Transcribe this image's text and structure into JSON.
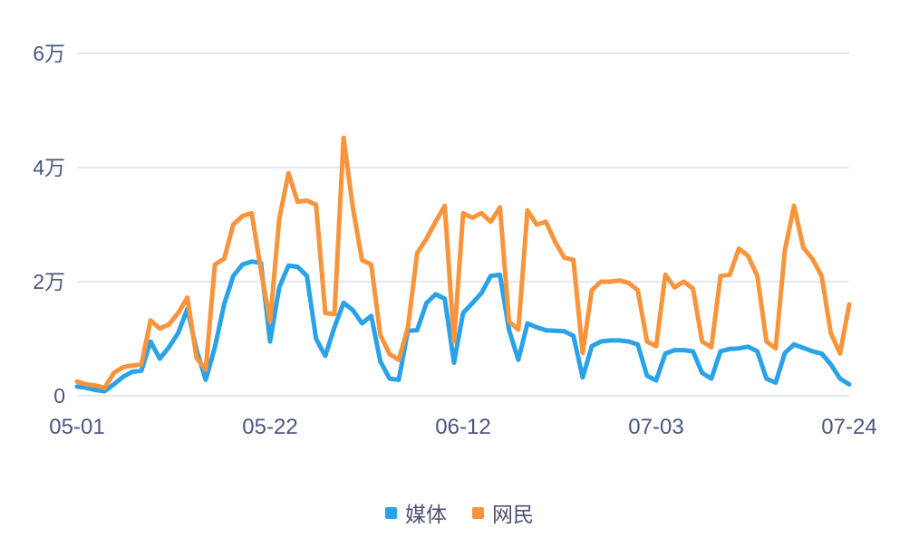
{
  "chart_data": {
    "type": "line",
    "title": "",
    "xlabel": "",
    "ylabel": "",
    "unit": "万",
    "ylim": [
      0,
      6
    ],
    "grid": true,
    "legend_position": "bottom",
    "y_ticks": [
      {
        "label": "0",
        "value": 0
      },
      {
        "label": "2万",
        "value": 2
      },
      {
        "label": "4万",
        "value": 4
      },
      {
        "label": "6万",
        "value": 6
      }
    ],
    "x_tick_labels": [
      "05-01",
      "05-22",
      "06-12",
      "07-03",
      "07-24"
    ],
    "x_tick_day_index": [
      0,
      21,
      42,
      63,
      84
    ],
    "x_range": [
      "05-01",
      "07-24"
    ],
    "colors": {
      "media_blue": "#2aa2e9",
      "netizen_orange": "#f8943b",
      "gridline": "#dce0ed",
      "axis_text": "#4a5680"
    },
    "series": [
      {
        "name": "媒体",
        "color": "#2aa2e9",
        "values": [
          0.16,
          0.14,
          0.1,
          0.08,
          0.2,
          0.33,
          0.42,
          0.44,
          0.95,
          0.65,
          0.85,
          1.1,
          1.52,
          0.8,
          0.28,
          0.85,
          1.6,
          2.1,
          2.3,
          2.35,
          2.33,
          0.95,
          1.9,
          2.28,
          2.26,
          2.1,
          1.0,
          0.7,
          1.2,
          1.63,
          1.5,
          1.27,
          1.4,
          0.6,
          0.3,
          0.28,
          1.14,
          1.15,
          1.62,
          1.78,
          1.7,
          0.58,
          1.45,
          1.62,
          1.8,
          2.1,
          2.12,
          1.15,
          0.63,
          1.27,
          1.2,
          1.15,
          1.14,
          1.13,
          1.05,
          0.32,
          0.87,
          0.95,
          0.97,
          0.97,
          0.95,
          0.9,
          0.35,
          0.27,
          0.74,
          0.8,
          0.8,
          0.78,
          0.4,
          0.3,
          0.78,
          0.82,
          0.83,
          0.86,
          0.78,
          0.3,
          0.23,
          0.75,
          0.9,
          0.84,
          0.78,
          0.74,
          0.55,
          0.3,
          0.2
        ]
      },
      {
        "name": "网民",
        "color": "#f8943b",
        "values": [
          0.25,
          0.2,
          0.18,
          0.14,
          0.4,
          0.5,
          0.53,
          0.55,
          1.32,
          1.18,
          1.25,
          1.45,
          1.72,
          0.66,
          0.46,
          2.3,
          2.4,
          3.0,
          3.15,
          3.2,
          2.2,
          1.3,
          3.1,
          3.9,
          3.4,
          3.42,
          3.35,
          1.45,
          1.43,
          4.52,
          3.3,
          2.38,
          2.3,
          1.06,
          0.73,
          0.63,
          1.2,
          2.5,
          2.75,
          3.05,
          3.33,
          0.95,
          3.2,
          3.12,
          3.2,
          3.05,
          3.3,
          1.3,
          1.16,
          3.25,
          3.0,
          3.05,
          2.7,
          2.42,
          2.38,
          0.75,
          1.85,
          2.0,
          2.0,
          2.02,
          1.98,
          1.85,
          0.95,
          0.87,
          2.12,
          1.9,
          2.0,
          1.88,
          0.95,
          0.85,
          2.1,
          2.12,
          2.58,
          2.45,
          2.1,
          0.95,
          0.83,
          2.55,
          3.33,
          2.6,
          2.4,
          2.1,
          1.1,
          0.74,
          1.6
        ]
      }
    ]
  }
}
